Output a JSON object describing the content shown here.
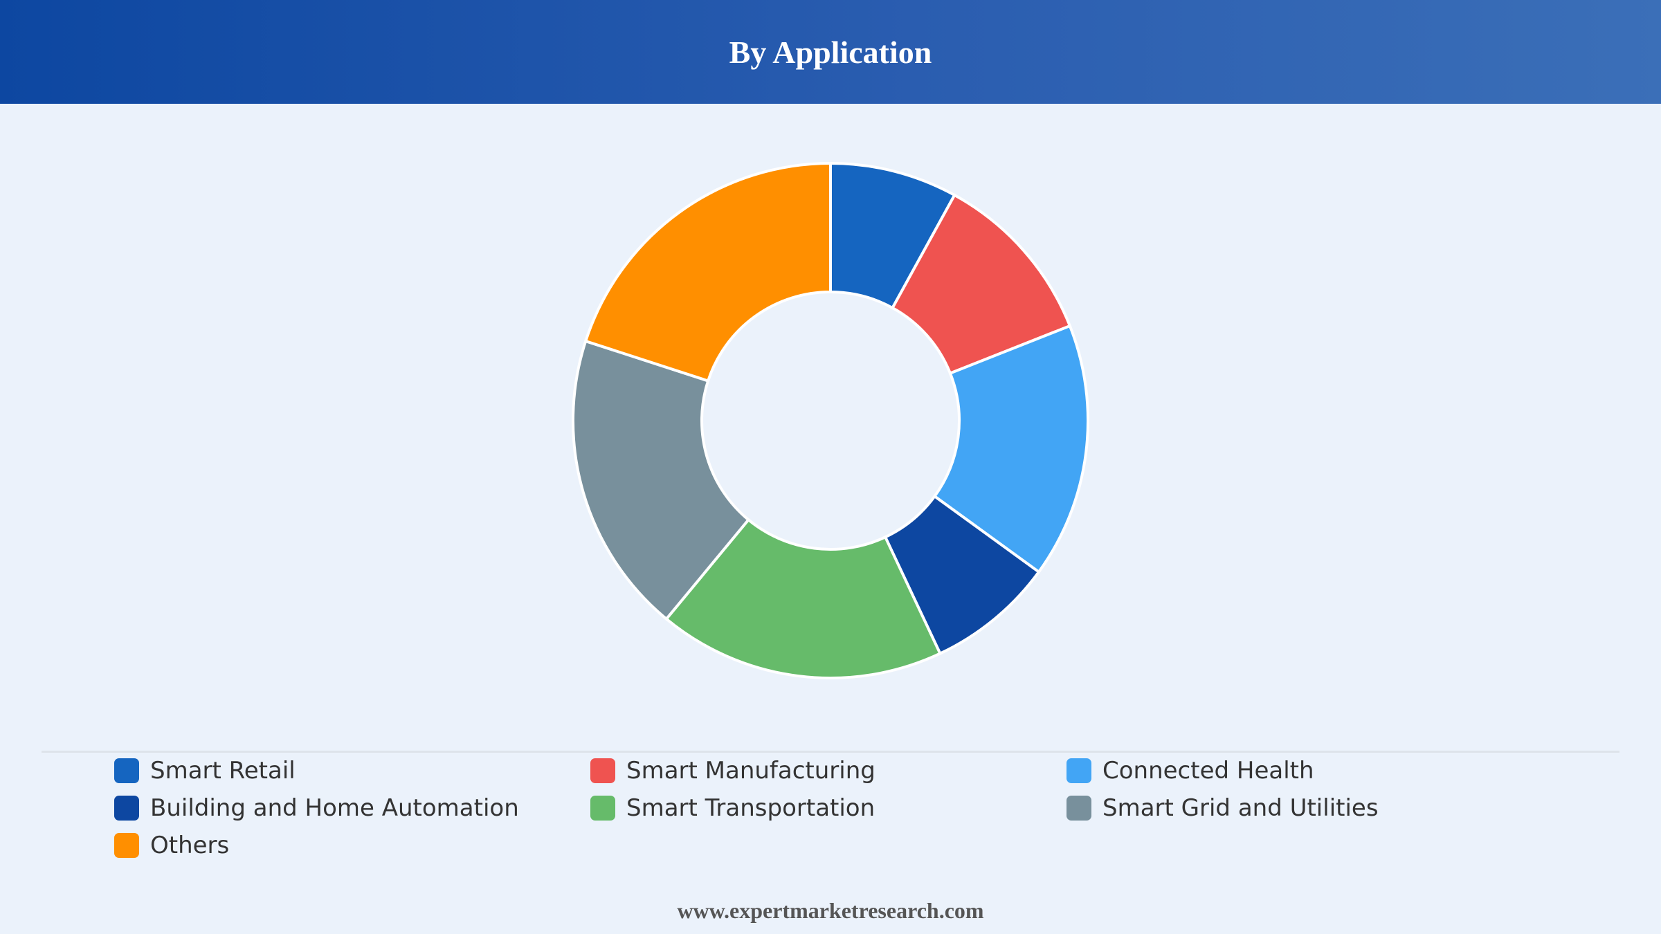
{
  "header": {
    "title": "By Application"
  },
  "chart_data": {
    "type": "pie",
    "donut": true,
    "title": "By Application",
    "categories": [
      "Smart Retail",
      "Smart Manufacturing",
      "Connected Health",
      "Building and Home Automation",
      "Smart Transportation",
      "Smart Grid and Utilities",
      "Others"
    ],
    "values": [
      8,
      11,
      16,
      8,
      18,
      19,
      20
    ],
    "colors": [
      "#1565c0",
      "#ef5350",
      "#42a5f5",
      "#0d47a1",
      "#66bb6a",
      "#78909c",
      "#ff8f00"
    ],
    "legend_position": "bottom"
  },
  "footer": {
    "text": "www.expertmarketresearch.com"
  }
}
